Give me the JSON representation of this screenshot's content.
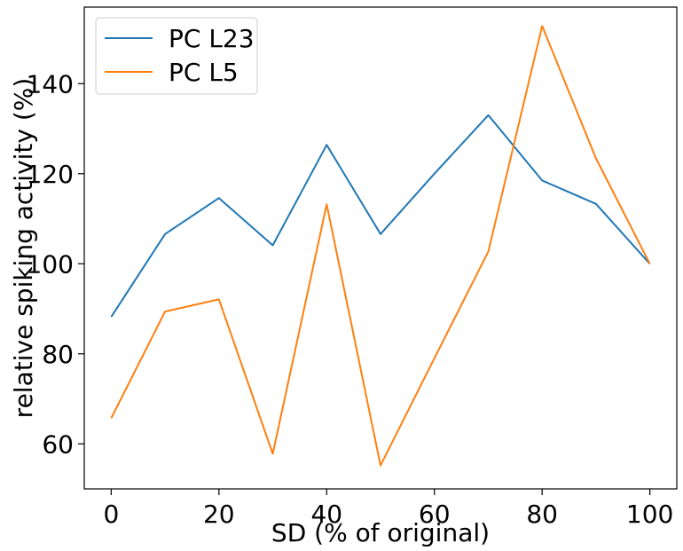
{
  "chart_data": {
    "type": "line",
    "xlabel": "SD (% of original)",
    "ylabel": "relative spiking activity (%)",
    "xlim": [
      -5,
      105
    ],
    "ylim": [
      50,
      157
    ],
    "xticks": [
      0,
      20,
      40,
      60,
      80,
      100
    ],
    "yticks": [
      60,
      80,
      100,
      120,
      140
    ],
    "x": [
      0,
      10,
      20,
      30,
      40,
      50,
      60,
      70,
      80,
      90,
      100
    ],
    "series": [
      {
        "name": "PC L23",
        "color": "#1f77b4",
        "values": [
          88.2,
          106.6,
          114.6,
          104.1,
          126.4,
          106.6,
          120.0,
          133.0,
          118.5,
          113.3,
          100.0
        ]
      },
      {
        "name": "PC L5",
        "color": "#ff7f0e",
        "values": [
          65.7,
          89.4,
          92.1,
          57.8,
          113.2,
          55.2,
          79.0,
          102.7,
          152.8,
          123.4,
          100.0
        ]
      }
    ],
    "legend": {
      "position": "top-left"
    },
    "grid": false
  }
}
